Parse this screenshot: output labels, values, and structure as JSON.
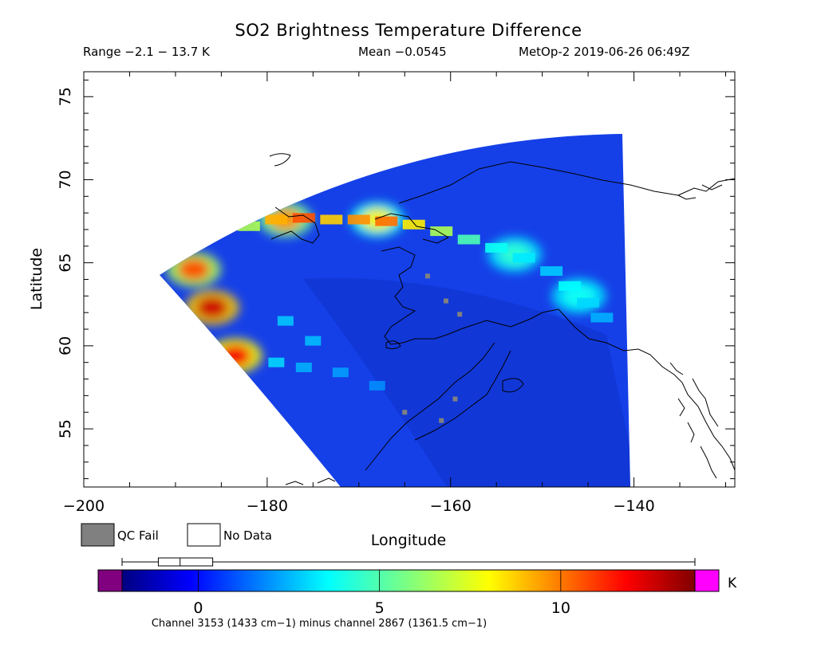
{
  "header": {
    "title": "SO2 Brightness Temperature Difference",
    "range_text": "Range −2.1 − 13.7 K",
    "mean_text": "Mean −0.0545",
    "source_text": "MetOp-2 2019-06-26 06:49Z"
  },
  "legend": {
    "qc_fail_label": "QC Fail",
    "no_data_label": "No Data",
    "qc_fail_color": "#808080"
  },
  "colorbar": {
    "unit": "K",
    "ticks": [
      "0",
      "5",
      "10"
    ],
    "tick_values": [
      0,
      5,
      10
    ],
    "min": -2.1,
    "max": 13.7,
    "below_color": "#800080",
    "above_color": "#ff00ff",
    "box_q1": -1.1,
    "box_q3": 0.4,
    "box_median": -0.5,
    "caption": "Channel 3153 (1433 cm−1) minus channel 2867 (1361.5 cm−1)"
  },
  "chart_data": {
    "type": "heatmap",
    "title": "SO2 Brightness Temperature Difference",
    "xlabel": "Longitude",
    "ylabel": "Latitude",
    "xlim": [
      -200,
      -129
    ],
    "ylim": [
      51.5,
      76.5
    ],
    "xticks": [
      -200,
      -180,
      -160,
      -140
    ],
    "yticks": [
      55,
      60,
      65,
      70,
      75
    ],
    "xtick_labels": [
      "−200",
      "−180",
      "−160",
      "−140"
    ],
    "ytick_labels": [
      "55",
      "60",
      "65",
      "70",
      "75"
    ],
    "value_range": [
      -2.1,
      13.7
    ],
    "mean": -0.0545,
    "units": "K",
    "plumes": [
      {
        "lon": -186,
        "lat": 62.3,
        "value": 12.5
      },
      {
        "lon": -183.5,
        "lat": 59.4,
        "value": 11.8
      },
      {
        "lon": -188,
        "lat": 64.6,
        "value": 10.5
      },
      {
        "lon": -178,
        "lat": 67.6,
        "value": 9.5
      },
      {
        "lon": -168,
        "lat": 67.6,
        "value": 8.0
      },
      {
        "lon": -153,
        "lat": 65.5,
        "value": 4.5
      },
      {
        "lon": -146,
        "lat": 63.0,
        "value": 4.0
      }
    ],
    "qc_fail_points": [
      {
        "lon": -162.5,
        "lat": 64.2
      },
      {
        "lon": -160.5,
        "lat": 62.7
      },
      {
        "lon": -159,
        "lat": 61.9
      },
      {
        "lon": -165,
        "lat": 56.0
      },
      {
        "lon": -161,
        "lat": 55.5
      },
      {
        "lon": -159.5,
        "lat": 56.8
      }
    ]
  }
}
